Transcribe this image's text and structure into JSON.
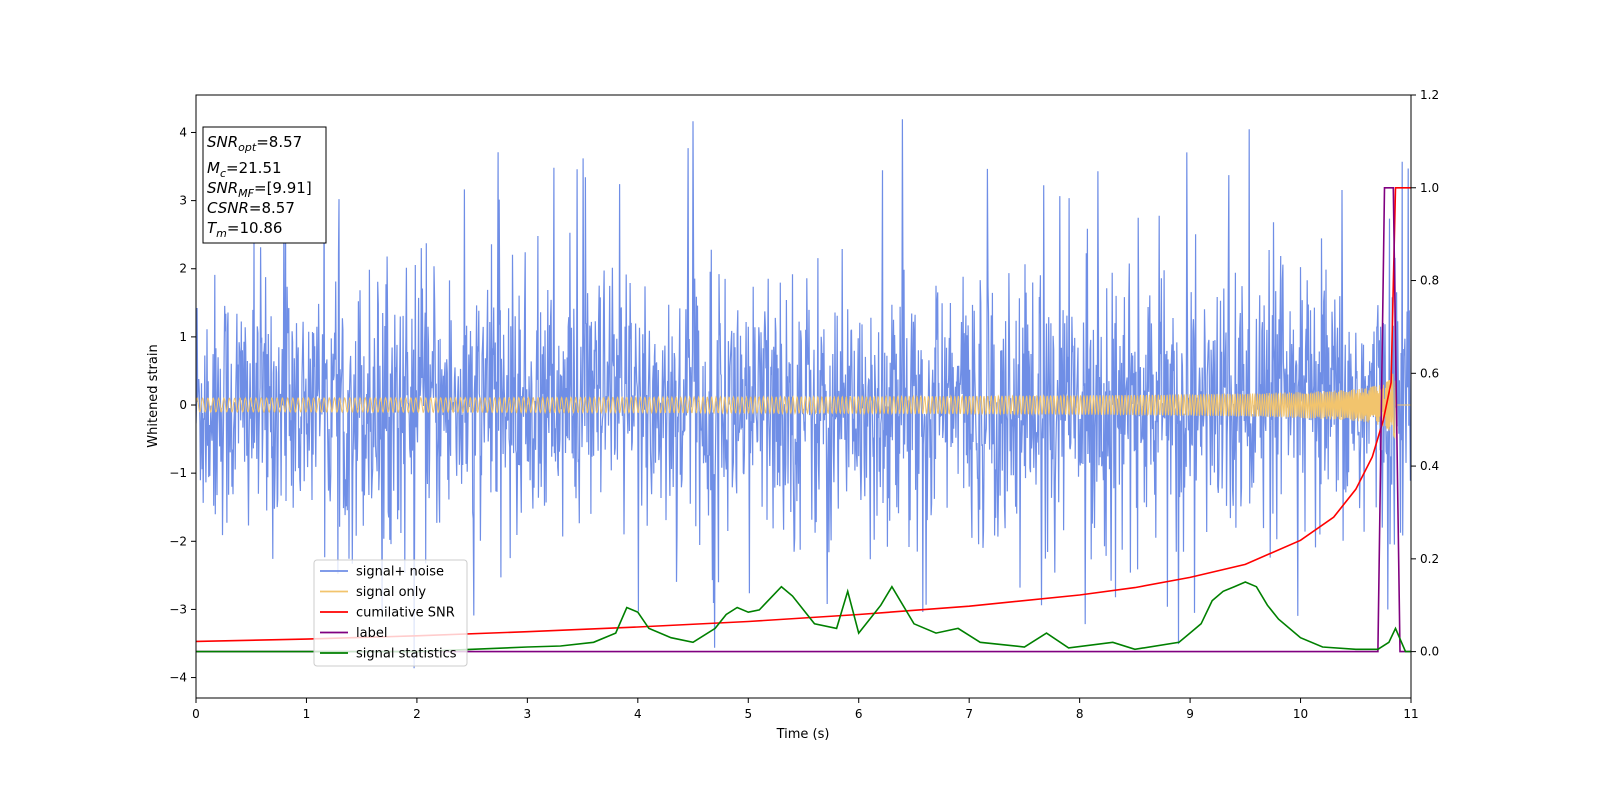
{
  "chart_data": {
    "type": "line",
    "xlabel": "Time (s)",
    "ylabel": "Whitened strain",
    "xlim": [
      0,
      11
    ],
    "ylim_left": [
      -4.3,
      4.55
    ],
    "ylim_right": [
      -0.1,
      1.2
    ],
    "x_ticks": [
      0,
      1,
      2,
      3,
      4,
      5,
      6,
      7,
      8,
      9,
      10,
      11
    ],
    "y_ticks_left": [
      -4,
      -3,
      -2,
      -1,
      0,
      1,
      2,
      3,
      4
    ],
    "y_ticks_right": [
      0.0,
      0.2,
      0.4,
      0.6,
      0.8,
      1.0,
      1.2
    ],
    "grid": false,
    "legend_position": "lower-left",
    "annotation_box": [
      {
        "name": "SNR",
        "sub": "opt",
        "value": "=8.57"
      },
      {
        "name": "M",
        "sub": "c",
        "value": "=21.51"
      },
      {
        "name": "SNR",
        "sub": "MF",
        "value": "=[9.91]"
      },
      {
        "name": "CSNR",
        "sub": "",
        "value": "=8.57"
      },
      {
        "name": "T",
        "sub": "m",
        "value": "=10.86"
      }
    ],
    "series": [
      {
        "name": "signal+ noise",
        "color": "#6f8ee6",
        "axis": "left",
        "kind": "noise",
        "samples": 2200,
        "std": 0.95,
        "spike_max": 4.2,
        "spike_min": -3.9
      },
      {
        "name": "signal only",
        "color": "#f2c46d",
        "axis": "left",
        "kind": "chirp",
        "merger_time": 10.86,
        "peak_amplitude": 1.4
      },
      {
        "name": "cumilative SNR",
        "color": "#ff0000",
        "axis": "right",
        "x": [
          0,
          1,
          2,
          3,
          4,
          5,
          6,
          7,
          8,
          8.5,
          9,
          9.5,
          10,
          10.3,
          10.5,
          10.65,
          10.75,
          10.82,
          10.86,
          10.9,
          11
        ],
        "y": [
          0.022,
          0.027,
          0.034,
          0.043,
          0.053,
          0.065,
          0.08,
          0.098,
          0.122,
          0.138,
          0.16,
          0.188,
          0.24,
          0.29,
          0.35,
          0.42,
          0.5,
          0.58,
          1.0,
          1.0,
          1.0
        ]
      },
      {
        "name": "label",
        "color": "#800080",
        "axis": "right",
        "x": [
          0,
          10.7,
          10.76,
          10.84,
          10.9,
          11
        ],
        "y": [
          0,
          0,
          1.0,
          1.0,
          0,
          0
        ]
      },
      {
        "name": "signal statistics",
        "color": "#008000",
        "axis": "right",
        "x": [
          0,
          1,
          2,
          2.5,
          3,
          3.3,
          3.6,
          3.8,
          3.9,
          4.0,
          4.1,
          4.3,
          4.5,
          4.7,
          4.8,
          4.9,
          5.0,
          5.1,
          5.3,
          5.4,
          5.6,
          5.8,
          5.9,
          6.0,
          6.1,
          6.2,
          6.3,
          6.5,
          6.7,
          6.9,
          7.1,
          7.5,
          7.7,
          7.9,
          8.3,
          8.5,
          8.9,
          9.1,
          9.2,
          9.3,
          9.4,
          9.5,
          9.6,
          9.7,
          9.8,
          10.0,
          10.2,
          10.5,
          10.7,
          10.8,
          10.86,
          10.95,
          11
        ],
        "y": [
          0,
          0,
          0.0,
          0.005,
          0.01,
          0.012,
          0.02,
          0.04,
          0.095,
          0.085,
          0.05,
          0.03,
          0.02,
          0.05,
          0.08,
          0.095,
          0.085,
          0.09,
          0.14,
          0.12,
          0.06,
          0.05,
          0.13,
          0.04,
          0.07,
          0.1,
          0.14,
          0.06,
          0.04,
          0.05,
          0.02,
          0.01,
          0.04,
          0.008,
          0.02,
          0.005,
          0.02,
          0.06,
          0.11,
          0.13,
          0.14,
          0.15,
          0.14,
          0.1,
          0.07,
          0.03,
          0.01,
          0.005,
          0.005,
          0.02,
          0.05,
          0.0,
          0.0
        ]
      }
    ]
  }
}
